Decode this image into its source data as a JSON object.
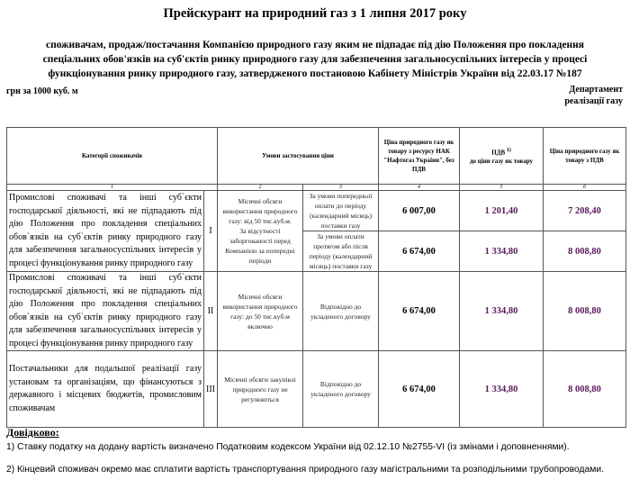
{
  "title": "Прейскурант на природний газ з 1 липня 2017 року",
  "subtitle": "споживачам, продаж/постачання Компанією природного газу яким не підпадає під дію Положення про покладення спеціальних обов'язків на суб'єктів ринку природного газу для забезпечення загальносуспільних інтересів у процесі функціонування ринку природного газу, затвердженого постановою Кабінету Міністрів України від 22.03.17 №187",
  "unit": "грн за 1000 куб. м",
  "department": [
    "Департамент",
    "реалізації газу"
  ],
  "table": {
    "headers": [
      "Категорії споживачів",
      "Умови застосування ціни",
      "Ціна природного газу як товару з ресурсу НАК \"Нафтогаз України\", без ПДВ",
      "ПДВ",
      "до ціни газу як товару",
      "Ціна природного газу як товару з ПДВ"
    ],
    "vat_footnote": "1)",
    "col_numbers": [
      "1",
      "2",
      "3",
      "4",
      "5",
      "6"
    ],
    "rows": [
      {
        "category": "Промислові споживачі та інші суб`єкти господарської діяльності, які не підпадають під дію Положення про покладення спеціальних обов`язків на суб`єктів ринку природного газу для забезпечення загальносуспільних інтересів у процесі функціонування ринку природного газу",
        "group": "I",
        "condition": "Місячні обсяги використання природного газу: від 50 тис.куб.м.",
        "condition_extra": "За відсутності заборгованості перед Компанією за попередні періоди",
        "sub": [
          {
            "payment": "За умови попередньої оплати до періоду (календарний місяць) поставки газу",
            "price": "6 007,00",
            "vat": "1 201,40",
            "total": "7 208,40"
          },
          {
            "payment": "За умови оплати протягом або після періоду (календарний місяць) поставки газу",
            "price": "6 674,00",
            "vat": "1 334,80",
            "total": "8 008,80"
          }
        ]
      },
      {
        "category": "Промислові споживачі та інші суб`єкти господарської діяльності, які не підпадають під дію Положення про покладення спеціальних обов`язків на суб`єктів ринку природного газу для забезпечення загальносуспільних інтересів у процесі функціонування ринку природного газу",
        "group": "II",
        "condition": "Місячні обсяги використання природного газу: до 50 тис.куб.м включно",
        "payment": "Відповідно до укладеного договору",
        "price": "6 674,00",
        "vat": "1 334,80",
        "total": "8 008,80"
      },
      {
        "category": "Постачальники для подальшої реалізації газу установам та організаціям, що фінансуються з державного і місцевих бюджетів, промисловим споживачам",
        "group": "III",
        "condition": "Місячні обсяги закупівлі природного газу не регулюються",
        "payment": "Відповідно до укладеного договору",
        "price": "6 674,00",
        "vat": "1 334,80",
        "total": "8 008,80"
      }
    ]
  },
  "notes": {
    "heading": "Довідково:",
    "items": [
      "1) Ставку податку на додану вартість визначено Податковим кодексом України від 02.12.10 №2755-VI (із змінами і доповненнями).",
      "2) Кінцевий споживач окремо має сплатити вартість транспортування природного газу магістральними та розподільними трубопроводами."
    ]
  },
  "colors": {
    "vat_total_text": "#5b1a5b",
    "border": "#555555"
  }
}
